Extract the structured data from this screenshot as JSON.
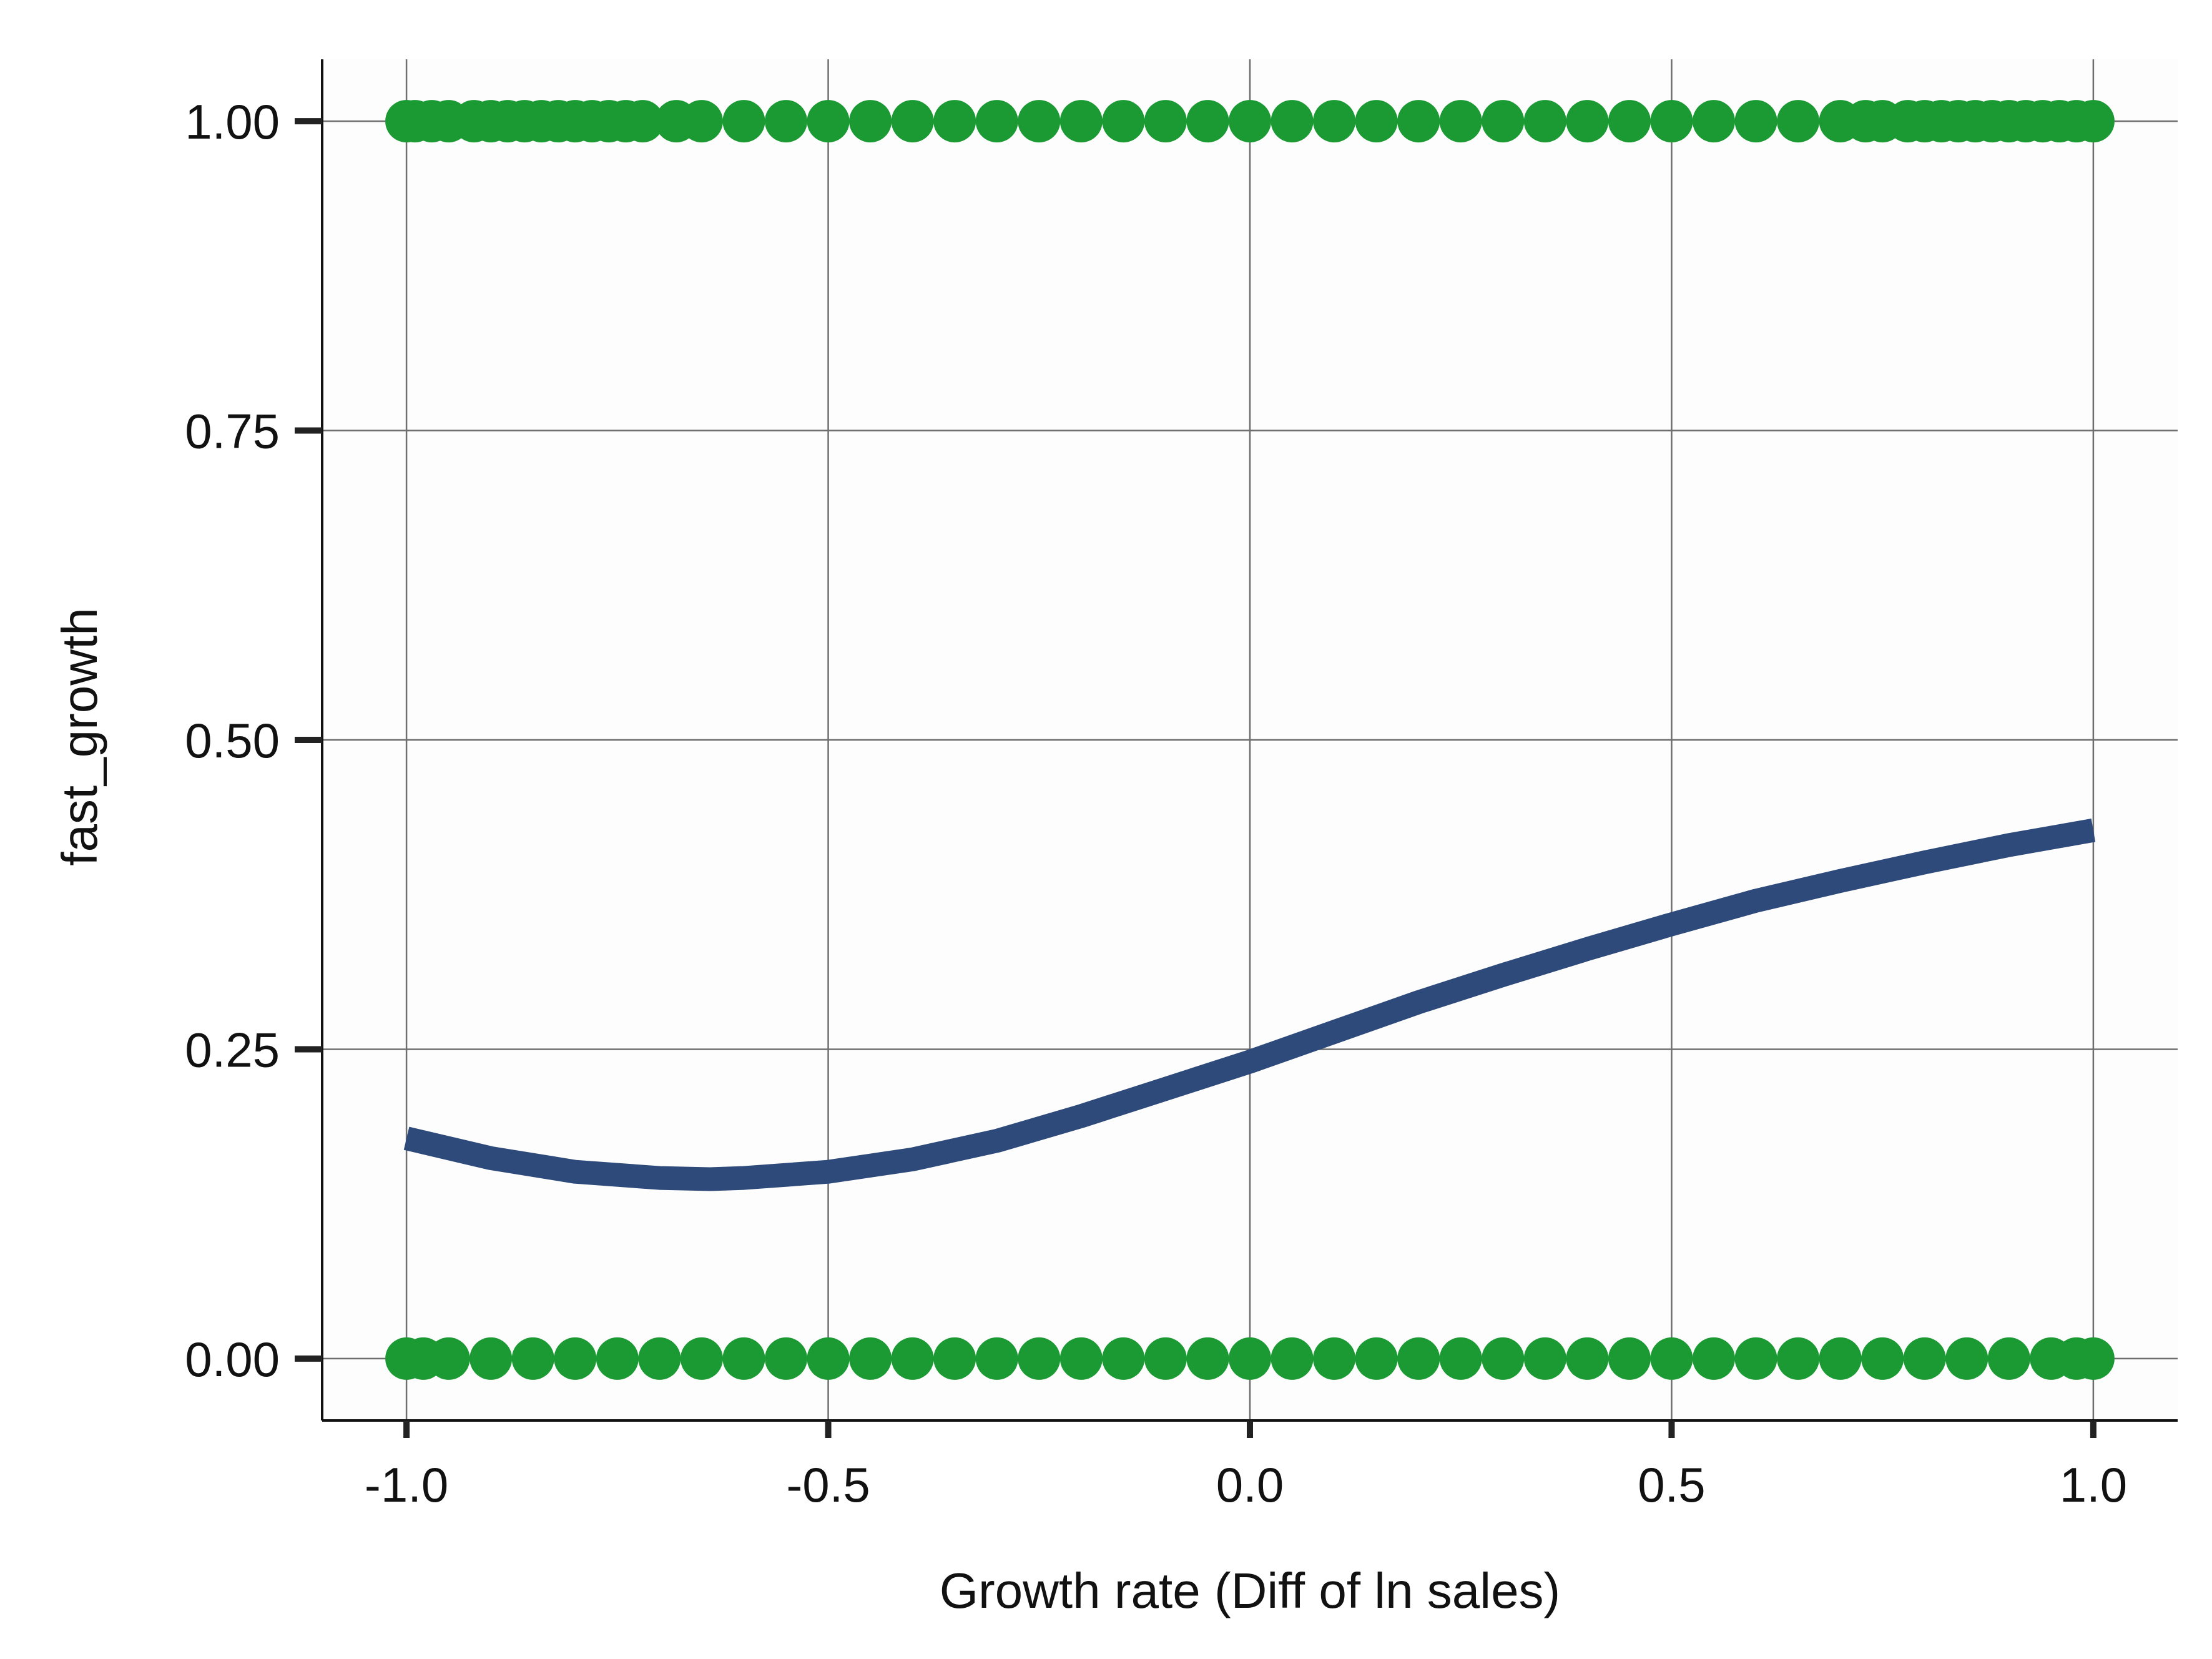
{
  "chart_data": {
    "type": "scatter",
    "title": "",
    "xlabel": "Growth rate (Diff of ln sales)",
    "ylabel": "fast_growth",
    "xlim": [
      -1.1,
      1.1
    ],
    "ylim": [
      -0.05,
      1.05
    ],
    "x_ticks": [
      -1.0,
      -0.5,
      0.0,
      0.5,
      1.0
    ],
    "x_tick_labels": [
      "-1.0",
      "-0.5",
      "0.0",
      "0.5",
      "1.0"
    ],
    "y_ticks": [
      0.0,
      0.25,
      0.5,
      0.75,
      1.0
    ],
    "y_tick_labels": [
      "0.00",
      "0.25",
      "0.50",
      "0.75",
      "1.00"
    ],
    "grid": true,
    "legend": "none",
    "series": [
      {
        "kind": "points",
        "color": "#1b9a33",
        "y": 1,
        "x": [
          -1.0,
          -0.99,
          -0.97,
          -0.95,
          -0.92,
          -0.9,
          -0.88,
          -0.86,
          -0.84,
          -0.82,
          -0.8,
          -0.78,
          -0.76,
          -0.74,
          -0.72,
          -0.68,
          -0.65,
          -0.6,
          -0.55,
          -0.5,
          -0.45,
          -0.4,
          -0.35,
          -0.3,
          -0.25,
          -0.2,
          -0.15,
          -0.1,
          -0.05,
          0.0,
          0.05,
          0.1,
          0.15,
          0.2,
          0.25,
          0.3,
          0.35,
          0.4,
          0.45,
          0.5,
          0.55,
          0.6,
          0.65,
          0.7,
          0.73,
          0.75,
          0.78,
          0.8,
          0.82,
          0.84,
          0.86,
          0.88,
          0.9,
          0.92,
          0.94,
          0.96,
          0.98,
          1.0
        ]
      },
      {
        "kind": "points",
        "color": "#1b9a33",
        "y": 0,
        "x": [
          -1.0,
          -0.98,
          -0.95,
          -0.9,
          -0.85,
          -0.8,
          -0.75,
          -0.7,
          -0.65,
          -0.6,
          -0.55,
          -0.5,
          -0.45,
          -0.4,
          -0.35,
          -0.3,
          -0.25,
          -0.2,
          -0.15,
          -0.1,
          -0.05,
          0.0,
          0.05,
          0.1,
          0.15,
          0.2,
          0.25,
          0.3,
          0.35,
          0.4,
          0.45,
          0.5,
          0.55,
          0.6,
          0.65,
          0.7,
          0.75,
          0.8,
          0.85,
          0.9,
          0.95,
          0.98,
          1.0
        ]
      },
      {
        "kind": "smooth",
        "color": "#2e4a7a",
        "x": [
          -1.0,
          -0.9,
          -0.8,
          -0.7,
          -0.64,
          -0.6,
          -0.5,
          -0.4,
          -0.3,
          -0.2,
          -0.1,
          0.0,
          0.1,
          0.2,
          0.3,
          0.4,
          0.5,
          0.6,
          0.7,
          0.8,
          0.9,
          1.0
        ],
        "y": [
          0.178,
          0.162,
          0.151,
          0.146,
          0.145,
          0.146,
          0.151,
          0.161,
          0.176,
          0.196,
          0.218,
          0.24,
          0.264,
          0.288,
          0.31,
          0.331,
          0.351,
          0.37,
          0.386,
          0.401,
          0.415,
          0.427
        ]
      }
    ]
  }
}
